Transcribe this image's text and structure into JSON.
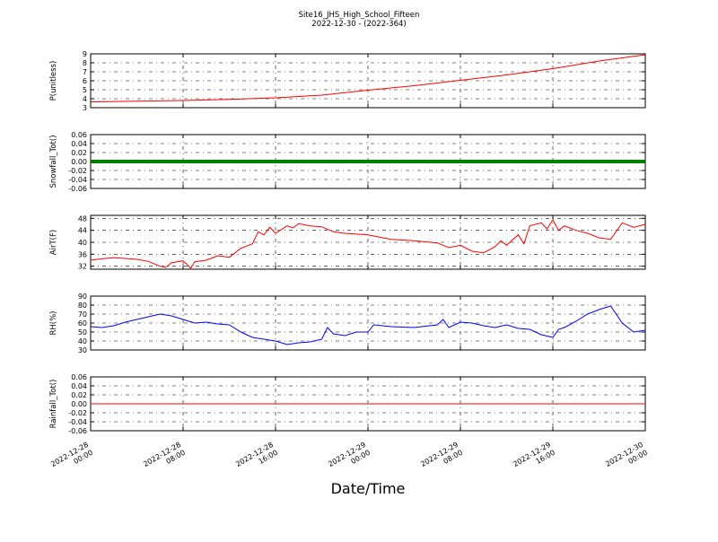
{
  "chart_data": {
    "type": "line",
    "title": "Site16_JHS_High_School_Fifteen",
    "subtitle": "2022-12-30 - (2022-364)",
    "xlabel": "Date/Time",
    "x_ticks": [
      [
        "2022-12-28",
        "00:00"
      ],
      [
        "2022-12-28",
        "08:00"
      ],
      [
        "2022-12-28",
        "16:00"
      ],
      [
        "2022-12-29",
        "00:00"
      ],
      [
        "2022-12-29",
        "08:00"
      ],
      [
        "2022-12-29",
        "16:00"
      ],
      [
        "2022-12-30",
        "00:00"
      ]
    ],
    "xlim": [
      "2022-12-28 00:00",
      "2022-12-30 00:00"
    ],
    "grid": true,
    "panels": [
      {
        "ylabel": "P(unitless)",
        "ylim": [
          3,
          9
        ],
        "yticks": [
          "3",
          "4",
          "5",
          "6",
          "7",
          "8",
          "9"
        ],
        "color": "#ff0000",
        "style": "line",
        "series": [
          {
            "x": "2022-12-28 00:00",
            "y": 3.65
          },
          {
            "x": "2022-12-28 04:00",
            "y": 3.72
          },
          {
            "x": "2022-12-28 08:00",
            "y": 3.8
          },
          {
            "x": "2022-12-28 12:00",
            "y": 3.92
          },
          {
            "x": "2022-12-28 16:00",
            "y": 4.1
          },
          {
            "x": "2022-12-28 20:00",
            "y": 4.4
          },
          {
            "x": "2022-12-29 00:00",
            "y": 4.95
          },
          {
            "x": "2022-12-29 04:00",
            "y": 5.45
          },
          {
            "x": "2022-12-29 08:00",
            "y": 6.05
          },
          {
            "x": "2022-12-29 12:00",
            "y": 6.65
          },
          {
            "x": "2022-12-29 16:00",
            "y": 7.35
          },
          {
            "x": "2022-12-29 20:00",
            "y": 8.2
          },
          {
            "x": "2022-12-30 00:00",
            "y": 8.9
          }
        ]
      },
      {
        "ylabel": "Snowfall_Tot()",
        "ylim": [
          -0.06,
          0.06
        ],
        "yticks": [
          "-0.06",
          "-0.04",
          "-0.02",
          "0.00",
          "0.02",
          "0.04",
          "0.06"
        ],
        "color": "#008000",
        "style": "markers",
        "series": [
          {
            "x": "2022-12-28 00:00",
            "y": 0
          },
          {
            "x": "2022-12-30 00:00",
            "y": 0
          }
        ]
      },
      {
        "ylabel": "AirT(F)",
        "ylim": [
          31,
          49
        ],
        "yticks": [
          "32",
          "36",
          "40",
          "44",
          "48"
        ],
        "color": "#ff0000",
        "style": "line",
        "series": [
          {
            "x": "2022-12-28 00:00",
            "y": 34.0
          },
          {
            "x": "2022-12-28 01:00",
            "y": 34.5
          },
          {
            "x": "2022-12-28 02:00",
            "y": 34.8
          },
          {
            "x": "2022-12-28 03:00",
            "y": 34.6
          },
          {
            "x": "2022-12-28 04:00",
            "y": 34.3
          },
          {
            "x": "2022-12-28 05:00",
            "y": 33.6
          },
          {
            "x": "2022-12-28 06:00",
            "y": 32.0
          },
          {
            "x": "2022-12-28 06:30",
            "y": 31.6
          },
          {
            "x": "2022-12-28 07:00",
            "y": 33.2
          },
          {
            "x": "2022-12-28 08:00",
            "y": 33.8
          },
          {
            "x": "2022-12-28 08:40",
            "y": 31.3
          },
          {
            "x": "2022-12-28 09:00",
            "y": 33.5
          },
          {
            "x": "2022-12-28 10:00",
            "y": 34.0
          },
          {
            "x": "2022-12-28 11:00",
            "y": 35.5
          },
          {
            "x": "2022-12-28 12:00",
            "y": 35.0
          },
          {
            "x": "2022-12-28 13:00",
            "y": 38.0
          },
          {
            "x": "2022-12-28 14:00",
            "y": 39.5
          },
          {
            "x": "2022-12-28 14:30",
            "y": 43.5
          },
          {
            "x": "2022-12-28 15:00",
            "y": 42.5
          },
          {
            "x": "2022-12-28 15:30",
            "y": 45.0
          },
          {
            "x": "2022-12-28 16:00",
            "y": 43.0
          },
          {
            "x": "2022-12-28 17:00",
            "y": 45.5
          },
          {
            "x": "2022-12-28 17:30",
            "y": 44.8
          },
          {
            "x": "2022-12-28 18:00",
            "y": 46.2
          },
          {
            "x": "2022-12-28 19:00",
            "y": 45.5
          },
          {
            "x": "2022-12-28 20:00",
            "y": 45.2
          },
          {
            "x": "2022-12-28 21:00",
            "y": 43.5
          },
          {
            "x": "2022-12-28 22:00",
            "y": 43.0
          },
          {
            "x": "2022-12-29 00:00",
            "y": 42.5
          },
          {
            "x": "2022-12-29 02:00",
            "y": 41.0
          },
          {
            "x": "2022-12-29 04:00",
            "y": 40.5
          },
          {
            "x": "2022-12-29 06:00",
            "y": 39.8
          },
          {
            "x": "2022-12-29 07:00",
            "y": 38.2
          },
          {
            "x": "2022-12-29 08:00",
            "y": 39.0
          },
          {
            "x": "2022-12-29 09:00",
            "y": 37.0
          },
          {
            "x": "2022-12-29 10:00",
            "y": 36.5
          },
          {
            "x": "2022-12-29 11:00",
            "y": 38.5
          },
          {
            "x": "2022-12-29 11:30",
            "y": 40.5
          },
          {
            "x": "2022-12-29 12:00",
            "y": 39.0
          },
          {
            "x": "2022-12-29 13:00",
            "y": 42.5
          },
          {
            "x": "2022-12-29 13:30",
            "y": 39.5
          },
          {
            "x": "2022-12-29 14:00",
            "y": 45.5
          },
          {
            "x": "2022-12-29 15:00",
            "y": 46.5
          },
          {
            "x": "2022-12-29 15:30",
            "y": 44.5
          },
          {
            "x": "2022-12-29 16:00",
            "y": 47.5
          },
          {
            "x": "2022-12-29 16:30",
            "y": 44.0
          },
          {
            "x": "2022-12-29 17:00",
            "y": 45.5
          },
          {
            "x": "2022-12-29 18:00",
            "y": 44.0
          },
          {
            "x": "2022-12-29 19:00",
            "y": 43.0
          },
          {
            "x": "2022-12-29 20:00",
            "y": 41.5
          },
          {
            "x": "2022-12-29 21:00",
            "y": 41.0
          },
          {
            "x": "2022-12-29 22:00",
            "y": 46.5
          },
          {
            "x": "2022-12-29 23:00",
            "y": 45.0
          },
          {
            "x": "2022-12-30 00:00",
            "y": 46.0
          }
        ]
      },
      {
        "ylabel": "RH(%)",
        "ylim": [
          30,
          90
        ],
        "yticks": [
          "30",
          "40",
          "50",
          "60",
          "70",
          "80",
          "90"
        ],
        "color": "#0000ff",
        "style": "line",
        "series": [
          {
            "x": "2022-12-28 00:00",
            "y": 56
          },
          {
            "x": "2022-12-28 01:00",
            "y": 55
          },
          {
            "x": "2022-12-28 02:00",
            "y": 57
          },
          {
            "x": "2022-12-28 03:00",
            "y": 61
          },
          {
            "x": "2022-12-28 04:00",
            "y": 64
          },
          {
            "x": "2022-12-28 05:00",
            "y": 67
          },
          {
            "x": "2022-12-28 06:00",
            "y": 70
          },
          {
            "x": "2022-12-28 07:00",
            "y": 68
          },
          {
            "x": "2022-12-28 08:00",
            "y": 64
          },
          {
            "x": "2022-12-28 09:00",
            "y": 60
          },
          {
            "x": "2022-12-28 10:00",
            "y": 61
          },
          {
            "x": "2022-12-28 11:00",
            "y": 59
          },
          {
            "x": "2022-12-28 12:00",
            "y": 58
          },
          {
            "x": "2022-12-28 13:00",
            "y": 50
          },
          {
            "x": "2022-12-28 14:00",
            "y": 44
          },
          {
            "x": "2022-12-28 15:00",
            "y": 42
          },
          {
            "x": "2022-12-28 16:00",
            "y": 40
          },
          {
            "x": "2022-12-28 17:00",
            "y": 36
          },
          {
            "x": "2022-12-28 18:00",
            "y": 38
          },
          {
            "x": "2022-12-28 19:00",
            "y": 39
          },
          {
            "x": "2022-12-28 20:00",
            "y": 42
          },
          {
            "x": "2022-12-28 20:30",
            "y": 55
          },
          {
            "x": "2022-12-28 21:00",
            "y": 48
          },
          {
            "x": "2022-12-28 22:00",
            "y": 46
          },
          {
            "x": "2022-12-28 23:00",
            "y": 50
          },
          {
            "x": "2022-12-29 00:00",
            "y": 50
          },
          {
            "x": "2022-12-29 00:30",
            "y": 58
          },
          {
            "x": "2022-12-29 02:00",
            "y": 56
          },
          {
            "x": "2022-12-29 04:00",
            "y": 55
          },
          {
            "x": "2022-12-29 06:00",
            "y": 58
          },
          {
            "x": "2022-12-29 06:30",
            "y": 64
          },
          {
            "x": "2022-12-29 07:00",
            "y": 55
          },
          {
            "x": "2022-12-29 08:00",
            "y": 61
          },
          {
            "x": "2022-12-29 09:00",
            "y": 60
          },
          {
            "x": "2022-12-29 10:00",
            "y": 57
          },
          {
            "x": "2022-12-29 11:00",
            "y": 55
          },
          {
            "x": "2022-12-29 12:00",
            "y": 58
          },
          {
            "x": "2022-12-29 13:00",
            "y": 54
          },
          {
            "x": "2022-12-29 14:00",
            "y": 53
          },
          {
            "x": "2022-12-29 15:00",
            "y": 47
          },
          {
            "x": "2022-12-29 16:00",
            "y": 44
          },
          {
            "x": "2022-12-29 16:30",
            "y": 53
          },
          {
            "x": "2022-12-29 17:00",
            "y": 55
          },
          {
            "x": "2022-12-29 18:00",
            "y": 62
          },
          {
            "x": "2022-12-29 19:00",
            "y": 70
          },
          {
            "x": "2022-12-29 20:00",
            "y": 75
          },
          {
            "x": "2022-12-29 21:00",
            "y": 79
          },
          {
            "x": "2022-12-29 22:00",
            "y": 60
          },
          {
            "x": "2022-12-29 23:00",
            "y": 50
          },
          {
            "x": "2022-12-30 00:00",
            "y": 52
          }
        ]
      },
      {
        "ylabel": "Rainfall_Tot()",
        "ylim": [
          -0.06,
          0.06
        ],
        "yticks": [
          "-0.06",
          "-0.04",
          "-0.02",
          "0.00",
          "0.02",
          "0.04",
          "0.06"
        ],
        "color": "#ff0000",
        "style": "line",
        "series": [
          {
            "x": "2022-12-28 00:00",
            "y": 0
          },
          {
            "x": "2022-12-30 00:00",
            "y": 0
          }
        ]
      }
    ]
  }
}
